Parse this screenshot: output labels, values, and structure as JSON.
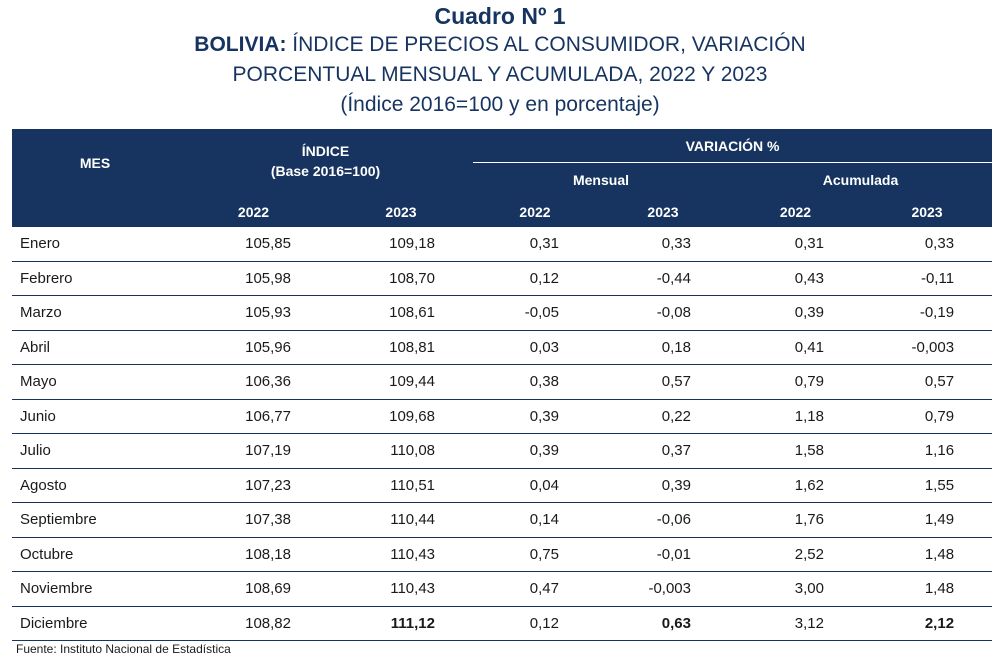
{
  "header": {
    "cuadro": "Cuadro Nº 1",
    "title_country": "BOLIVIA:",
    "title_line1_rest": " ÍNDICE DE PRECIOS AL CONSUMIDOR, VARIACIÓN",
    "title_line2": "PORCENTUAL MENSUAL Y ACUMULADA, 2022 Y 2023",
    "title_line3": "(Índice 2016=100 y en porcentaje)"
  },
  "table": {
    "col_mes": "MES",
    "col_indice": "ÍNDICE",
    "col_indice_base": "(Base 2016=100)",
    "col_variacion": "VARIACIÓN %",
    "col_mensual": "Mensual",
    "col_acumulada": "Acumulada",
    "years": [
      "2022",
      "2023",
      "2022",
      "2023",
      "2022",
      "2023"
    ],
    "rows": [
      {
        "mes": "Enero",
        "idx2022": "105,85",
        "idx2023": "109,18",
        "men2022": "0,31",
        "men2023": "0,33",
        "acu2022": "0,31",
        "acu2023": "0,33"
      },
      {
        "mes": "Febrero",
        "idx2022": "105,98",
        "idx2023": "108,70",
        "men2022": "0,12",
        "men2023": "-0,44",
        "acu2022": "0,43",
        "acu2023": "-0,11"
      },
      {
        "mes": "Marzo",
        "idx2022": "105,93",
        "idx2023": "108,61",
        "men2022": "-0,05",
        "men2023": "-0,08",
        "acu2022": "0,39",
        "acu2023": "-0,19"
      },
      {
        "mes": "Abril",
        "idx2022": "105,96",
        "idx2023": "108,81",
        "men2022": "0,03",
        "men2023": "0,18",
        "acu2022": "0,41",
        "acu2023": "-0,003"
      },
      {
        "mes": "Mayo",
        "idx2022": "106,36",
        "idx2023": "109,44",
        "men2022": "0,38",
        "men2023": "0,57",
        "acu2022": "0,79",
        "acu2023": "0,57"
      },
      {
        "mes": "Junio",
        "idx2022": "106,77",
        "idx2023": "109,68",
        "men2022": "0,39",
        "men2023": "0,22",
        "acu2022": "1,18",
        "acu2023": "0,79"
      },
      {
        "mes": "Julio",
        "idx2022": "107,19",
        "idx2023": "110,08",
        "men2022": "0,39",
        "men2023": "0,37",
        "acu2022": "1,58",
        "acu2023": "1,16"
      },
      {
        "mes": "Agosto",
        "idx2022": "107,23",
        "idx2023": "110,51",
        "men2022": "0,04",
        "men2023": "0,39",
        "acu2022": "1,62",
        "acu2023": "1,55"
      },
      {
        "mes": "Septiembre",
        "idx2022": "107,38",
        "idx2023": "110,44",
        "men2022": "0,14",
        "men2023": "-0,06",
        "acu2022": "1,76",
        "acu2023": "1,49"
      },
      {
        "mes": "Octubre",
        "idx2022": "108,18",
        "idx2023": "110,43",
        "men2022": "0,75",
        "men2023": "-0,01",
        "acu2022": "2,52",
        "acu2023": "1,48"
      },
      {
        "mes": "Noviembre",
        "idx2022": "108,69",
        "idx2023": "110,43",
        "men2022": "0,47",
        "men2023": "-0,003",
        "acu2022": "3,00",
        "acu2023": "1,48"
      },
      {
        "mes": "Diciembre",
        "idx2022": "108,82",
        "idx2023": "111,12",
        "men2022": "0,12",
        "men2023": "0,63",
        "acu2022": "3,12",
        "acu2023": "2,12"
      }
    ]
  },
  "footer": {
    "source": "Fuente: Instituto Nacional de Estadística"
  },
  "colors": {
    "header_bg": "#16345f",
    "title_text": "#16345f"
  }
}
